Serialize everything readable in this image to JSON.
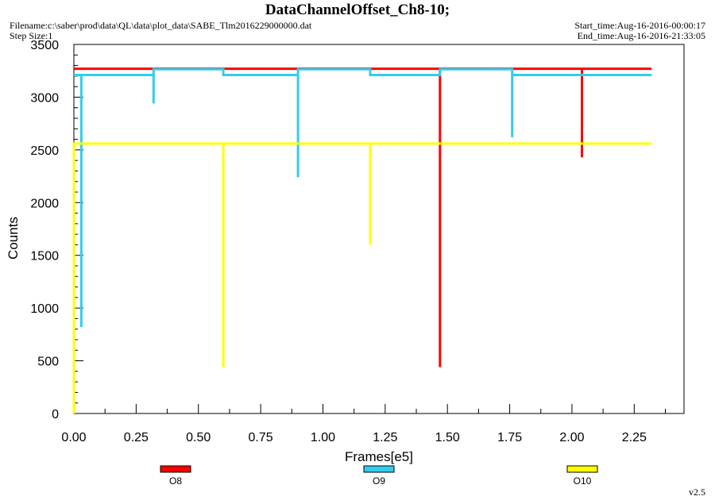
{
  "header": {
    "title": "DataChannelOffset_Ch8-10;",
    "filename": "Filename:c:\\saber\\prod\\data\\QL\\data\\plot_data\\SABE_Tlm2016229000000.dat",
    "step_size": "Step Size:1",
    "start_time": "Start_time:Aug-16-2016-00:00:17",
    "end_time": "End_time:Aug-16-2016-21:33:05"
  },
  "version": "v2.5",
  "colors": {
    "O8": "#ff0000",
    "O9": "#33ccee",
    "O10": "#ffff00",
    "background": "#ffffff",
    "axis": "#000000"
  },
  "chart_data": {
    "type": "line",
    "title": "DataChannelOffset_Ch8-10;",
    "xlabel": "Frames[e5]",
    "ylabel": "Counts",
    "xlim": [
      0,
      2.45
    ],
    "ylim": [
      0,
      3500
    ],
    "x_ticks": [
      "0.00",
      "0.25",
      "0.50",
      "0.75",
      "1.00",
      "1.25",
      "1.50",
      "1.75",
      "2.00",
      "2.25"
    ],
    "y_ticks": [
      "0",
      "500",
      "1000",
      "1500",
      "2000",
      "2500",
      "3000",
      "3500"
    ],
    "grid": false,
    "legend_position": "bottom",
    "series": [
      {
        "name": "O8",
        "color": "#ff0000",
        "x": [
          0.0,
          1.47,
          1.47,
          1.47,
          2.04,
          2.04,
          2.04,
          2.32
        ],
        "y": [
          3270,
          3270,
          440,
          3270,
          3270,
          2430,
          3270,
          3270
        ]
      },
      {
        "name": "O9",
        "color": "#33ccee",
        "x": [
          0.0,
          0.03,
          0.03,
          0.03,
          0.32,
          0.32,
          0.32,
          0.6,
          0.6,
          0.9,
          0.9,
          0.9,
          1.19,
          1.19,
          1.47,
          1.47,
          1.76,
          1.76,
          1.76,
          2.32
        ],
        "y": [
          3210,
          3210,
          820,
          3210,
          3210,
          2940,
          3265,
          3265,
          3210,
          3210,
          2240,
          3265,
          3265,
          3210,
          3210,
          3265,
          3265,
          2620,
          3210,
          3210
        ]
      },
      {
        "name": "O10",
        "color": "#ffff00",
        "x": [
          0.0,
          0.0,
          0.0,
          0.6,
          0.6,
          0.6,
          1.19,
          1.19,
          1.19,
          2.32
        ],
        "y": [
          0,
          2560,
          2560,
          2560,
          440,
          2560,
          2560,
          1600,
          2560,
          2560
        ]
      }
    ]
  }
}
